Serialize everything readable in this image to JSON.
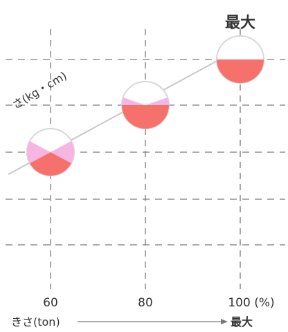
{
  "title_max": "最大",
  "diagonal_label": "さ(kg・cm)",
  "x_axis": {
    "label": "きさ(ton)",
    "end_label": "最大",
    "ticks": [
      "60",
      "80",
      "100 (%)"
    ]
  },
  "colors": {
    "full_slice": "#f7716c",
    "light_slice": "#f6b6e3",
    "grid": "#7a7a7a",
    "trend": "#c8c8c8",
    "text": "#333333"
  },
  "chart_data": {
    "type": "scatter",
    "x": [
      60,
      80,
      100
    ],
    "xlabel": "きさ(ton)",
    "ylabel": "さ(kg・cm)",
    "grid": true,
    "markers": [
      {
        "x": 60,
        "shape": "circle",
        "fill_pattern": "bottom-wedge-plus-side-wedges"
      },
      {
        "x": 80,
        "shape": "circle",
        "fill_pattern": "lower-half-plus-side-wedges"
      },
      {
        "x": 100,
        "shape": "circle",
        "fill_pattern": "lower-half"
      }
    ]
  }
}
